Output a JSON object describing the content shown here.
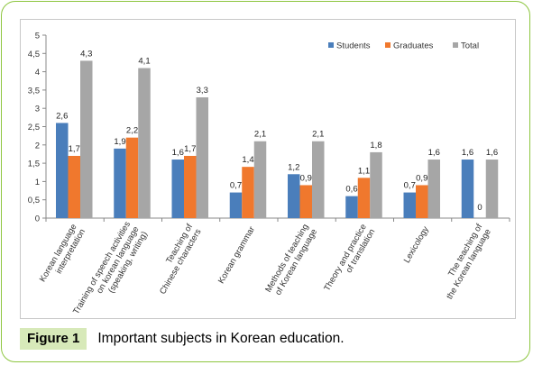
{
  "figure": {
    "label": "Figure 1",
    "caption": "Important subjects in Korean education."
  },
  "chart_data": {
    "type": "bar",
    "categories": [
      [
        "Korean language",
        "interpretation"
      ],
      [
        "Training of speech activities",
        "on korean language",
        "(speaking, writing)"
      ],
      [
        "Teaching of",
        "Chinese characters"
      ],
      [
        "Korean grammar"
      ],
      [
        "Methods of teaching",
        "of Korean language"
      ],
      [
        "Theory and practice",
        "of translation"
      ],
      [
        "Lexicology"
      ],
      [
        "The teaching of",
        "the Korean language"
      ]
    ],
    "series": [
      {
        "name": "Students",
        "color": "#4a7ebb",
        "values": [
          2.6,
          1.9,
          1.6,
          0.7,
          1.2,
          0.6,
          0.7,
          1.6
        ],
        "labels": [
          "2,6",
          "1,9",
          "1,6",
          "0,7",
          "1,2",
          "0,6",
          "0,7",
          "1,6"
        ]
      },
      {
        "name": "Graduates",
        "color": "#f0782d",
        "values": [
          1.7,
          2.2,
          1.7,
          1.4,
          0.9,
          1.1,
          0.9,
          0
        ],
        "labels": [
          "1,7",
          "2,2",
          "1,7",
          "1,4",
          "0,9",
          "1,1",
          "0,9",
          "0"
        ]
      },
      {
        "name": "Total",
        "color": "#a6a6a6",
        "values": [
          4.3,
          4.1,
          3.3,
          2.1,
          2.1,
          1.8,
          1.6,
          1.6
        ],
        "labels": [
          "4,3",
          "4,1",
          "3,3",
          "2,1",
          "2,1",
          "1,8",
          "1,6",
          "1,6"
        ]
      }
    ],
    "yticks": [
      "0",
      "0,5",
      "1",
      "1,5",
      "2",
      "2,5",
      "3",
      "3,5",
      "4",
      "4,5",
      "5"
    ],
    "ylim": [
      0,
      5
    ],
    "ystep": 0.5,
    "legend_position": "top-right",
    "grid": false
  }
}
